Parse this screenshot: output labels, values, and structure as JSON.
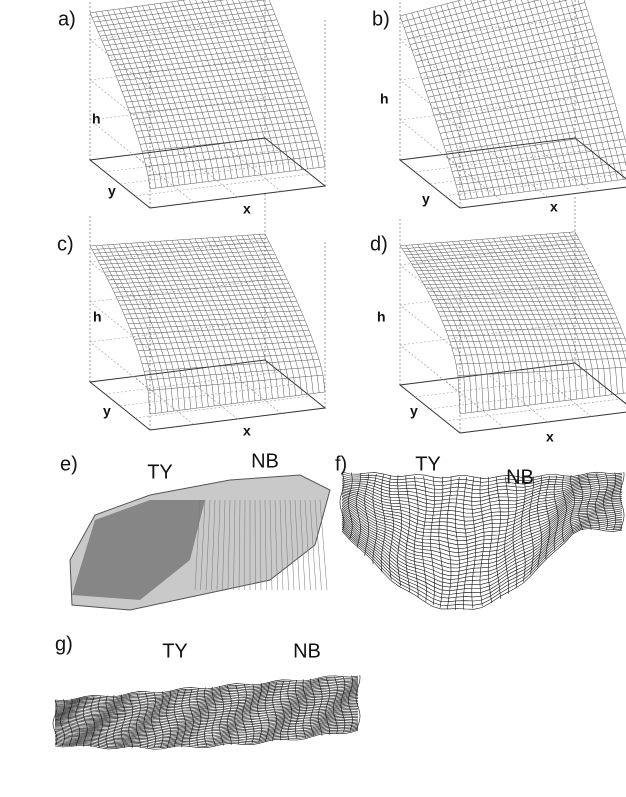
{
  "panels": [
    {
      "label": "a)",
      "h": "h",
      "y": "y",
      "x": "x"
    },
    {
      "label": "b)",
      "h": "h",
      "y": "y",
      "x": "x"
    },
    {
      "label": "c)",
      "h": "h",
      "y": "y",
      "x": "x"
    },
    {
      "label": "d)",
      "h": "h",
      "y": "y",
      "x": "x"
    }
  ],
  "photos": [
    {
      "label": "e)",
      "annotations": [
        "TY",
        "NB"
      ]
    },
    {
      "label": "f)",
      "annotations": [
        "TY",
        "NB"
      ]
    },
    {
      "label": "g)",
      "annotations": [
        "TY",
        "NB"
      ]
    }
  ]
}
